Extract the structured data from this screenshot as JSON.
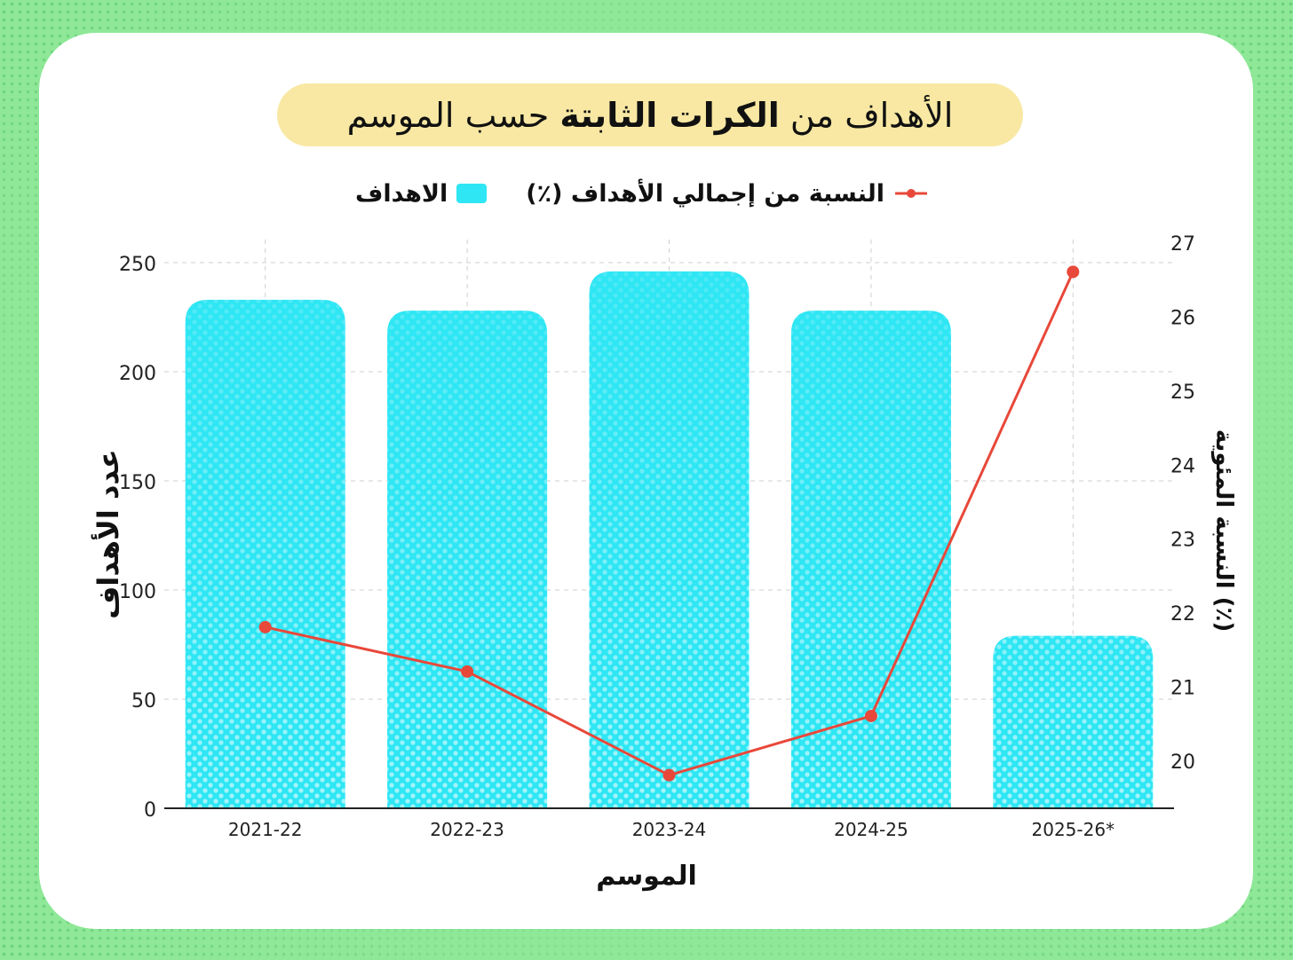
{
  "title": {
    "part1": "الأهداف من",
    "part2": "الكرات الثابتة",
    "part3": "حسب الموسم"
  },
  "legend": {
    "line_label": "النسبة من إجمالي الأهداف (٪)",
    "bar_label": "الاهداف"
  },
  "colors": {
    "bar": "#2ee6f4",
    "bar_light": "#a8f6fb",
    "line": "#e8483a",
    "background": "#8ee897",
    "title_pill": "#f8e8a3"
  },
  "chart_data": {
    "type": "bar",
    "categories": [
      "2021-22",
      "2022-23",
      "2023-24",
      "2024-25",
      "2025-26*"
    ],
    "xlabel": "الموسم",
    "ylabel": "عدد الأهداف",
    "y2label": "النسبة المئوية (٪)",
    "ylim": [
      0,
      250
    ],
    "yticks": [
      0,
      50,
      100,
      150,
      200,
      250
    ],
    "y2lim": [
      19.35,
      27
    ],
    "y2ticks": [
      20,
      21,
      22,
      23,
      24,
      25,
      26,
      27
    ],
    "grid": true,
    "legend_position": "top-center",
    "series": [
      {
        "name": "الاهداف",
        "type": "bar",
        "values": [
          233,
          228,
          246,
          228,
          79
        ]
      },
      {
        "name": "النسبة من إجمالي الأهداف (٪)",
        "type": "line",
        "axis": "right",
        "values": [
          21.8,
          21.2,
          19.8,
          20.6,
          26.6
        ]
      }
    ]
  }
}
